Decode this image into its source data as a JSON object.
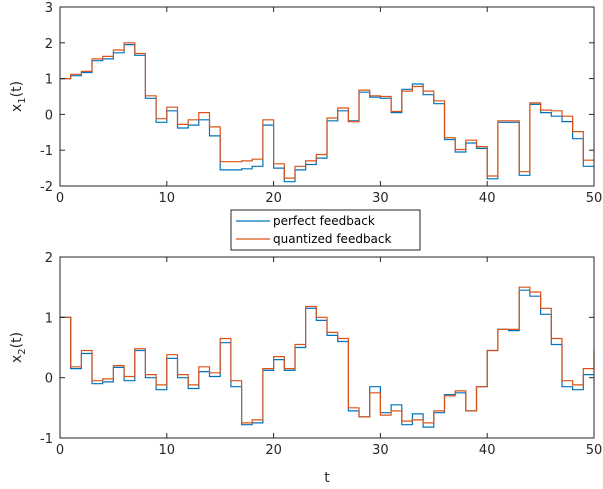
{
  "chart_data": [
    {
      "type": "line",
      "step": "post",
      "ylabel_main": "x",
      "ylabel_sub": "1",
      "ylabel_tail": "(t)",
      "xlim": [
        0,
        50
      ],
      "ylim": [
        -2,
        3
      ],
      "x_ticks": [
        "0",
        "10",
        "20",
        "30",
        "40",
        "50"
      ],
      "y_ticks": [
        "-2",
        "-1",
        "0",
        "1",
        "2",
        "3"
      ],
      "x": [
        0,
        1,
        2,
        3,
        4,
        5,
        6,
        7,
        8,
        9,
        10,
        11,
        12,
        13,
        14,
        15,
        16,
        17,
        18,
        19,
        20,
        21,
        22,
        23,
        24,
        25,
        26,
        27,
        28,
        29,
        30,
        31,
        32,
        33,
        34,
        35,
        36,
        37,
        38,
        39,
        40,
        41,
        42,
        43,
        44,
        45,
        46,
        47,
        48,
        49,
        50
      ],
      "series": [
        {
          "name": "perfect feedback",
          "color": "#0072BD",
          "values": [
            1.0,
            1.08,
            1.17,
            1.5,
            1.55,
            1.72,
            1.95,
            1.65,
            0.45,
            -0.22,
            0.1,
            -0.38,
            -0.3,
            -0.15,
            -0.6,
            -1.55,
            -1.55,
            -1.52,
            -1.45,
            -0.3,
            -1.5,
            -1.88,
            -1.55,
            -1.4,
            -1.22,
            -0.18,
            0.1,
            -0.18,
            0.62,
            0.48,
            0.45,
            0.05,
            0.7,
            0.85,
            0.55,
            0.3,
            -0.7,
            -1.05,
            -0.8,
            -0.95,
            -1.8,
            -0.22,
            -0.22,
            -1.7,
            0.28,
            0.05,
            -0.05,
            -0.2,
            -0.68,
            -1.45,
            -1.45
          ]
        },
        {
          "name": "quantized feedback",
          "color": "#D95319",
          "values": [
            1.0,
            1.12,
            1.2,
            1.55,
            1.62,
            1.8,
            2.0,
            1.7,
            0.52,
            -0.12,
            0.2,
            -0.28,
            -0.15,
            0.05,
            -0.35,
            -1.32,
            -1.32,
            -1.3,
            -1.25,
            -0.15,
            -1.38,
            -1.78,
            -1.45,
            -1.3,
            -1.12,
            -0.1,
            0.18,
            -0.2,
            0.68,
            0.52,
            0.5,
            0.08,
            0.65,
            0.78,
            0.65,
            0.38,
            -0.65,
            -0.98,
            -0.72,
            -0.9,
            -1.72,
            -0.18,
            -0.18,
            -1.6,
            0.32,
            0.12,
            0.1,
            -0.05,
            -0.48,
            -1.28,
            -1.28
          ]
        }
      ]
    },
    {
      "type": "line",
      "step": "post",
      "ylabel_main": "x",
      "ylabel_sub": "2",
      "ylabel_tail": "(t)",
      "xlabel": "t",
      "xlim": [
        0,
        50
      ],
      "ylim": [
        -1,
        2
      ],
      "x_ticks": [
        "0",
        "10",
        "20",
        "30",
        "40",
        "50"
      ],
      "y_ticks": [
        "-1",
        "0",
        "1",
        "2"
      ],
      "x": [
        0,
        1,
        2,
        3,
        4,
        5,
        6,
        7,
        8,
        9,
        10,
        11,
        12,
        13,
        14,
        15,
        16,
        17,
        18,
        19,
        20,
        21,
        22,
        23,
        24,
        25,
        26,
        27,
        28,
        29,
        30,
        31,
        32,
        33,
        34,
        35,
        36,
        37,
        38,
        39,
        40,
        41,
        42,
        43,
        44,
        45,
        46,
        47,
        48,
        49,
        50
      ],
      "series": [
        {
          "name": "perfect feedback",
          "color": "#0072BD",
          "values": [
            1.0,
            0.15,
            0.4,
            -0.1,
            -0.07,
            0.17,
            -0.05,
            0.45,
            0.0,
            -0.2,
            0.32,
            0.0,
            -0.18,
            0.1,
            0.02,
            0.58,
            -0.15,
            -0.78,
            -0.75,
            0.12,
            0.3,
            0.12,
            0.5,
            1.15,
            0.95,
            0.7,
            0.6,
            -0.55,
            -0.65,
            -0.15,
            -0.58,
            -0.45,
            -0.78,
            -0.6,
            -0.82,
            -0.58,
            -0.28,
            -0.25,
            -0.55,
            -0.15,
            0.45,
            0.8,
            0.78,
            1.45,
            1.35,
            1.05,
            0.55,
            -0.15,
            -0.2,
            0.05,
            0.05
          ]
        },
        {
          "name": "quantized feedback",
          "color": "#D95319",
          "values": [
            1.0,
            0.18,
            0.45,
            -0.05,
            -0.02,
            0.2,
            0.02,
            0.48,
            0.05,
            -0.12,
            0.38,
            0.05,
            -0.12,
            0.18,
            0.08,
            0.65,
            -0.05,
            -0.75,
            -0.7,
            0.15,
            0.35,
            0.15,
            0.55,
            1.18,
            1.0,
            0.75,
            0.65,
            -0.5,
            -0.65,
            -0.25,
            -0.62,
            -0.55,
            -0.72,
            -0.7,
            -0.75,
            -0.55,
            -0.3,
            -0.22,
            -0.55,
            -0.15,
            0.45,
            0.8,
            0.8,
            1.5,
            1.42,
            1.15,
            0.65,
            -0.05,
            -0.12,
            0.15,
            0.45
          ]
        }
      ]
    }
  ],
  "legend": {
    "items": [
      {
        "label": "perfect feedback",
        "color": "#0072BD"
      },
      {
        "label": "quantized feedback",
        "color": "#D95319"
      }
    ]
  }
}
